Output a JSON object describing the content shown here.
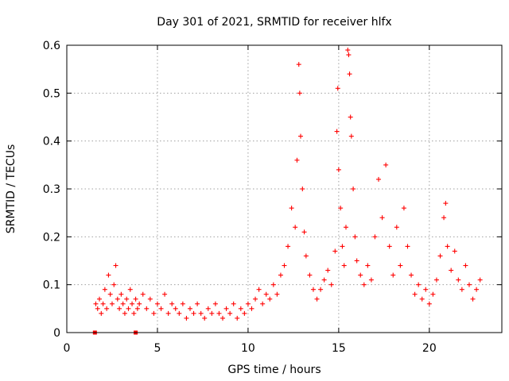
{
  "chart_data": {
    "type": "scatter",
    "title": "Day 301 of 2021, SRMTID for receiver hlfx",
    "xlabel": "GPS time / hours",
    "ylabel": "SRMTID / TECUs",
    "xlim": [
      0,
      24
    ],
    "ylim": [
      0,
      0.6
    ],
    "x_ticks": [
      0,
      5,
      10,
      15,
      20
    ],
    "y_ticks": [
      0,
      0.1,
      0.2,
      0.3,
      0.4,
      0.5,
      0.6
    ],
    "x_tick_labels": [
      "0",
      "5",
      "10",
      "15",
      "20"
    ],
    "y_tick_labels": [
      "0",
      "0.1",
      "0.2",
      "0.3",
      "0.4",
      "0.5",
      "0.6"
    ],
    "grid": true,
    "marker": "plus",
    "series_color": "#ff0000",
    "series": [
      {
        "name": "SRMTID",
        "marker": "plus",
        "points": [
          [
            1.6,
            0.06
          ],
          [
            1.7,
            0.05
          ],
          [
            1.8,
            0.07
          ],
          [
            1.9,
            0.04
          ],
          [
            2.0,
            0.06
          ],
          [
            2.1,
            0.09
          ],
          [
            2.2,
            0.05
          ],
          [
            2.3,
            0.12
          ],
          [
            2.4,
            0.08
          ],
          [
            2.5,
            0.06
          ],
          [
            2.6,
            0.1
          ],
          [
            2.7,
            0.14
          ],
          [
            2.8,
            0.07
          ],
          [
            2.9,
            0.05
          ],
          [
            3.0,
            0.08
          ],
          [
            3.1,
            0.06
          ],
          [
            3.2,
            0.04
          ],
          [
            3.3,
            0.07
          ],
          [
            3.4,
            0.05
          ],
          [
            3.5,
            0.09
          ],
          [
            3.6,
            0.06
          ],
          [
            3.7,
            0.04
          ],
          [
            3.8,
            0.07
          ],
          [
            3.9,
            0.05
          ],
          [
            4.0,
            0.06
          ],
          [
            4.2,
            0.08
          ],
          [
            4.4,
            0.05
          ],
          [
            4.6,
            0.07
          ],
          [
            4.8,
            0.04
          ],
          [
            5.0,
            0.06
          ],
          [
            5.2,
            0.05
          ],
          [
            5.4,
            0.08
          ],
          [
            5.6,
            0.04
          ],
          [
            5.8,
            0.06
          ],
          [
            6.0,
            0.05
          ],
          [
            6.2,
            0.04
          ],
          [
            6.4,
            0.06
          ],
          [
            6.6,
            0.03
          ],
          [
            6.8,
            0.05
          ],
          [
            7.0,
            0.04
          ],
          [
            7.2,
            0.06
          ],
          [
            7.4,
            0.04
          ],
          [
            7.6,
            0.03
          ],
          [
            7.8,
            0.05
          ],
          [
            8.0,
            0.04
          ],
          [
            8.2,
            0.06
          ],
          [
            8.4,
            0.04
          ],
          [
            8.6,
            0.03
          ],
          [
            8.8,
            0.05
          ],
          [
            9.0,
            0.04
          ],
          [
            9.2,
            0.06
          ],
          [
            9.4,
            0.03
          ],
          [
            9.6,
            0.05
          ],
          [
            9.8,
            0.04
          ],
          [
            10.0,
            0.06
          ],
          [
            10.2,
            0.05
          ],
          [
            10.4,
            0.07
          ],
          [
            10.6,
            0.09
          ],
          [
            10.8,
            0.06
          ],
          [
            11.0,
            0.08
          ],
          [
            11.2,
            0.07
          ],
          [
            11.4,
            0.1
          ],
          [
            11.6,
            0.08
          ],
          [
            11.8,
            0.12
          ],
          [
            12.0,
            0.14
          ],
          [
            12.2,
            0.18
          ],
          [
            12.4,
            0.26
          ],
          [
            12.6,
            0.22
          ],
          [
            12.7,
            0.36
          ],
          [
            12.8,
            0.56
          ],
          [
            12.85,
            0.5
          ],
          [
            12.9,
            0.41
          ],
          [
            13.0,
            0.3
          ],
          [
            13.1,
            0.21
          ],
          [
            13.2,
            0.16
          ],
          [
            13.4,
            0.12
          ],
          [
            13.6,
            0.09
          ],
          [
            13.8,
            0.07
          ],
          [
            14.0,
            0.09
          ],
          [
            14.2,
            0.11
          ],
          [
            14.4,
            0.13
          ],
          [
            14.6,
            0.1
          ],
          [
            14.8,
            0.17
          ],
          [
            14.9,
            0.42
          ],
          [
            14.95,
            0.51
          ],
          [
            15.0,
            0.34
          ],
          [
            15.1,
            0.26
          ],
          [
            15.2,
            0.18
          ],
          [
            15.3,
            0.14
          ],
          [
            15.4,
            0.22
          ],
          [
            15.5,
            0.59
          ],
          [
            15.55,
            0.58
          ],
          [
            15.6,
            0.54
          ],
          [
            15.65,
            0.45
          ],
          [
            15.7,
            0.41
          ],
          [
            15.8,
            0.3
          ],
          [
            15.9,
            0.2
          ],
          [
            16.0,
            0.15
          ],
          [
            16.2,
            0.12
          ],
          [
            16.4,
            0.1
          ],
          [
            16.6,
            0.14
          ],
          [
            16.8,
            0.11
          ],
          [
            17.0,
            0.2
          ],
          [
            17.2,
            0.32
          ],
          [
            17.4,
            0.24
          ],
          [
            17.6,
            0.35
          ],
          [
            17.8,
            0.18
          ],
          [
            18.0,
            0.12
          ],
          [
            18.2,
            0.22
          ],
          [
            18.4,
            0.14
          ],
          [
            18.6,
            0.26
          ],
          [
            18.8,
            0.18
          ],
          [
            19.0,
            0.12
          ],
          [
            19.2,
            0.08
          ],
          [
            19.4,
            0.1
          ],
          [
            19.6,
            0.07
          ],
          [
            19.8,
            0.09
          ],
          [
            20.0,
            0.06
          ],
          [
            20.2,
            0.08
          ],
          [
            20.4,
            0.11
          ],
          [
            20.6,
            0.16
          ],
          [
            20.8,
            0.24
          ],
          [
            20.9,
            0.27
          ],
          [
            21.0,
            0.18
          ],
          [
            21.2,
            0.13
          ],
          [
            21.4,
            0.17
          ],
          [
            21.6,
            0.11
          ],
          [
            21.8,
            0.09
          ],
          [
            22.0,
            0.14
          ],
          [
            22.2,
            0.1
          ],
          [
            22.4,
            0.07
          ],
          [
            22.6,
            0.09
          ],
          [
            22.8,
            0.11
          ]
        ]
      },
      {
        "name": "gap markers",
        "marker": "square",
        "points": [
          [
            1.55,
            0.0
          ],
          [
            3.8,
            0.0
          ]
        ]
      }
    ]
  }
}
